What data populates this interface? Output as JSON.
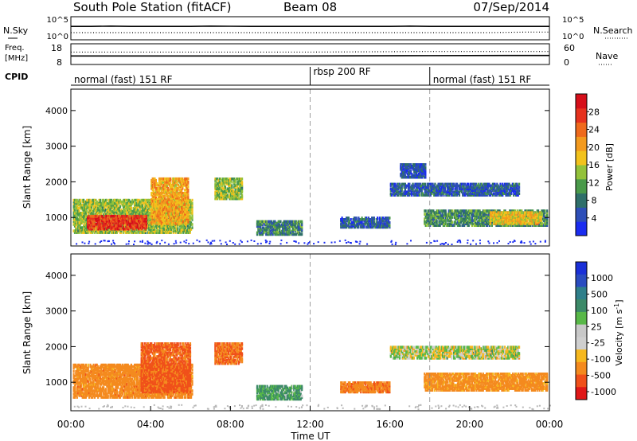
{
  "header": {
    "station": "South Pole Station (fitACF)",
    "beam": "Beam 08",
    "date": "07/Sep/2014"
  },
  "colors": {
    "power_scale": [
      "#1a2cf0",
      "#2e4fb8",
      "#2f6f6a",
      "#4a9a4a",
      "#93c23a",
      "#f2c21c",
      "#f39a1e",
      "#ef6a1c",
      "#e6321e",
      "#d60f1a"
    ],
    "velocity_scale": [
      "#e01818",
      "#f0501a",
      "#f48a1e",
      "#f6b81e",
      "#cfcfcf",
      "#c8c8c8",
      "#58b848",
      "#3c8a68",
      "#2f7f8a",
      "#2a4cc0",
      "#1a30d8"
    ],
    "ground_scatter": "#b8b8b8"
  },
  "chart_data": [
    {
      "type": "line",
      "panel": "noise",
      "ylabel_left": "N.Sky",
      "ylabel_right": "N.Search",
      "yticks_left": [
        "10^5",
        "10^0"
      ],
      "yticks_right": [
        "10^5",
        "10^0"
      ],
      "x_hours": [
        0,
        1,
        2,
        3,
        4,
        5,
        6,
        7,
        8,
        9,
        10,
        11,
        12,
        13,
        14,
        15,
        16,
        17,
        18,
        19,
        20,
        21,
        22,
        23,
        24
      ],
      "series": [
        {
          "name": "N.Sky",
          "style": "solid",
          "values": [
            900,
            900,
            1100,
            900,
            900,
            900,
            900,
            1100,
            1000,
            900,
            900,
            900,
            900,
            900,
            900,
            900,
            900,
            1100,
            900,
            900,
            900,
            900,
            900,
            900,
            900
          ]
        },
        {
          "name": "N.Search",
          "style": "dotted",
          "values": [
            25,
            25,
            25,
            25,
            25,
            25,
            25,
            25,
            25,
            25,
            25,
            25,
            25,
            25,
            25,
            25,
            25,
            25,
            25,
            25,
            25,
            25,
            30,
            35,
            35
          ]
        }
      ]
    },
    {
      "type": "line",
      "panel": "frequency",
      "ylabel_left": "Freq. [MHz]",
      "ylabel_right": "Nave",
      "yticks_left": [
        "18",
        "8"
      ],
      "yticks_right": [
        "60",
        "0"
      ],
      "x_hours": [
        0,
        6,
        12,
        18,
        24
      ],
      "series": [
        {
          "name": "Freq.",
          "style": "solid",
          "values": [
            12.2,
            12.2,
            12.2,
            12.4,
            12.5
          ]
        },
        {
          "name": "Nave",
          "style": "dotted",
          "values": [
            38,
            38,
            38,
            40,
            40
          ]
        }
      ]
    },
    {
      "type": "table",
      "panel": "cpid",
      "label": "CPID",
      "segments": [
        {
          "label": "normal (fast) 151 RF",
          "start_hour": 0,
          "end_hour": 12
        },
        {
          "label": "rbsp 200 RF",
          "start_hour": 12,
          "end_hour": 18
        },
        {
          "label": "normal (fast) 151 RF",
          "start_hour": 18,
          "end_hour": 24
        }
      ]
    },
    {
      "type": "heatmap",
      "panel": "power",
      "ylabel": "Slant Range [km]",
      "xlim": [
        0,
        24
      ],
      "ylim": [
        200,
        4600
      ],
      "yticks": [
        1000,
        2000,
        3000,
        4000
      ],
      "colorbar_label": "Power [dB]",
      "colorbar_ticks": [
        "28",
        "24",
        "20",
        "16",
        "12",
        "8",
        "4"
      ],
      "colorbar_range": [
        0,
        32
      ],
      "markers_hours": [
        12,
        18
      ],
      "regions": [
        {
          "t0": 0.1,
          "t1": 6.1,
          "r0": 550,
          "r1": 1500,
          "value": 14
        },
        {
          "t0": 0.8,
          "t1": 3.8,
          "r0": 650,
          "r1": 1050,
          "value": 27
        },
        {
          "t0": 4.0,
          "t1": 5.9,
          "r0": 800,
          "r1": 2100,
          "value": 20
        },
        {
          "t0": 7.2,
          "t1": 8.6,
          "r0": 1500,
          "r1": 2100,
          "value": 14
        },
        {
          "t0": 9.3,
          "t1": 11.6,
          "r0": 500,
          "r1": 900,
          "value": 9
        },
        {
          "t0": 17.7,
          "t1": 23.9,
          "r0": 750,
          "r1": 1200,
          "value": 10
        },
        {
          "t0": 21.0,
          "t1": 23.6,
          "r0": 800,
          "r1": 1150,
          "value": 18
        },
        {
          "t0": 16.0,
          "t1": 22.5,
          "r0": 1600,
          "r1": 1950,
          "value": 6
        },
        {
          "t0": 16.5,
          "t1": 17.8,
          "r0": 2100,
          "r1": 2500,
          "value": 5
        },
        {
          "t0": 13.5,
          "t1": 16.0,
          "r0": 700,
          "r1": 1000,
          "value": 6
        }
      ]
    },
    {
      "type": "heatmap",
      "panel": "velocity",
      "ylabel": "Slant Range [km]",
      "xlabel": "Time UT",
      "xticks": [
        "00:00",
        "04:00",
        "08:00",
        "12:00",
        "16:00",
        "20:00",
        "00:00"
      ],
      "xlim": [
        0,
        24
      ],
      "ylim": [
        200,
        4600
      ],
      "yticks": [
        1000,
        2000,
        3000,
        4000
      ],
      "colorbar_label": "Velocity [m s^-1]",
      "colorbar_ticks": [
        "1000",
        "500",
        "100",
        "25",
        "-25",
        "-100",
        "-500",
        "-1000"
      ],
      "colorbar_range": [
        -1000,
        1000
      ],
      "markers_hours": [
        12,
        18
      ],
      "regions": [
        {
          "t0": 0.1,
          "t1": 6.1,
          "r0": 550,
          "r1": 1500,
          "value": -200
        },
        {
          "t0": 3.5,
          "t1": 6.0,
          "r0": 700,
          "r1": 2100,
          "value": -350
        },
        {
          "t0": 7.2,
          "t1": 8.6,
          "r0": 1500,
          "r1": 2100,
          "value": -300
        },
        {
          "t0": 9.3,
          "t1": 11.6,
          "r0": 500,
          "r1": 900,
          "value": 120
        },
        {
          "t0": 17.7,
          "t1": 23.9,
          "r0": 750,
          "r1": 1250,
          "value": -180
        },
        {
          "t0": 16.0,
          "t1": 22.5,
          "r0": 1650,
          "r1": 2000,
          "value": 0
        },
        {
          "t0": 13.5,
          "t1": 16.0,
          "r0": 700,
          "r1": 1000,
          "value": -250
        }
      ]
    }
  ]
}
